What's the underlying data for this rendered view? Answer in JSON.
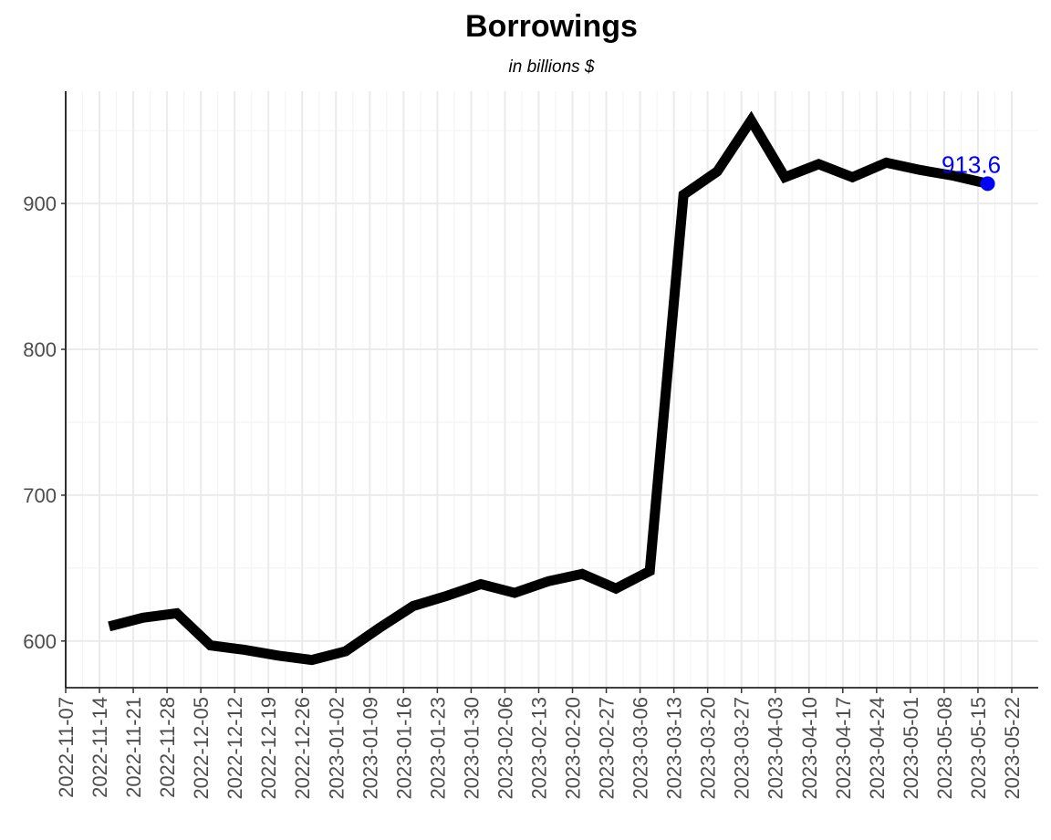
{
  "chart_data": {
    "type": "line",
    "title": "Borrowings",
    "subtitle": "in billions $",
    "xlabel": "",
    "ylabel": "",
    "x_ticks": [
      "2022-11-07",
      "2022-11-14",
      "2022-11-21",
      "2022-11-28",
      "2022-12-05",
      "2022-12-12",
      "2022-12-19",
      "2022-12-26",
      "2023-01-02",
      "2023-01-09",
      "2023-01-16",
      "2023-01-23",
      "2023-01-30",
      "2023-02-06",
      "2023-02-13",
      "2023-02-20",
      "2023-02-27",
      "2023-03-06",
      "2023-03-13",
      "2023-03-20",
      "2023-03-27",
      "2023-04-03",
      "2023-04-10",
      "2023-04-17",
      "2023-04-24",
      "2023-05-01",
      "2023-05-08",
      "2023-05-15",
      "2023-05-22"
    ],
    "y_ticks": [
      600,
      700,
      800,
      900
    ],
    "xlim": [
      "2022-11-07",
      "2023-05-22"
    ],
    "ylim": [
      568,
      977
    ],
    "grid": true,
    "series": [
      {
        "x": [
          "2022-11-16",
          "2022-11-23",
          "2022-11-30",
          "2022-12-07",
          "2022-12-14",
          "2022-12-21",
          "2022-12-28",
          "2023-01-04",
          "2023-01-11",
          "2023-01-18",
          "2023-01-25",
          "2023-02-01",
          "2023-02-08",
          "2023-02-15",
          "2023-02-22",
          "2023-03-01",
          "2023-03-08",
          "2023-03-15",
          "2023-03-22",
          "2023-03-29",
          "2023-04-05",
          "2023-04-12",
          "2023-04-19",
          "2023-04-26",
          "2023-05-03",
          "2023-05-10",
          "2023-05-17"
        ],
        "values": [
          610,
          616,
          619,
          597,
          594,
          590,
          587,
          593,
          609,
          624,
          631,
          639,
          633,
          641,
          646,
          636,
          648,
          906,
          922,
          957,
          918,
          927,
          918,
          928,
          923,
          919,
          913.6
        ],
        "color": "#000000"
      }
    ],
    "last_point": {
      "x": "2023-05-17",
      "value": 913.6,
      "label": "913.6",
      "color": "#0000ff"
    }
  }
}
